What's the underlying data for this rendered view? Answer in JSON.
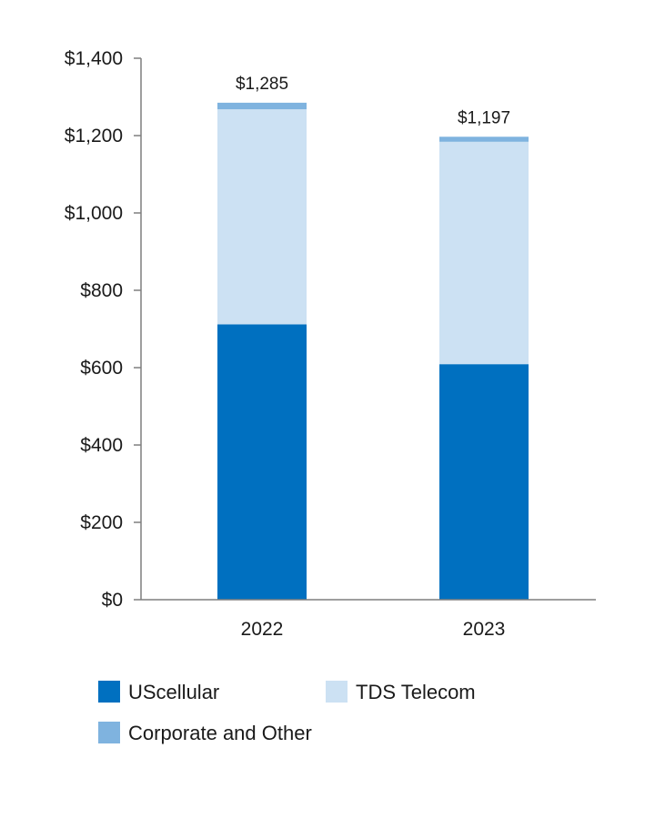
{
  "chart_data": {
    "type": "bar",
    "stacked": true,
    "title": "",
    "xlabel": "",
    "ylabel": "",
    "categories": [
      "2022",
      "2023"
    ],
    "series": [
      {
        "name": "UScellular",
        "values": [
          712,
          609
        ],
        "color": "#0070c0"
      },
      {
        "name": "TDS Telecom",
        "values": [
          556,
          575
        ],
        "color": "#cce1f3"
      },
      {
        "name": "Corporate and Other",
        "values": [
          17,
          13
        ],
        "color": "#7fb3df"
      }
    ],
    "totals": [
      1285,
      1197
    ],
    "total_labels": [
      "$1,285",
      "$1,197"
    ],
    "ylim": [
      0,
      1400
    ],
    "yticks": [
      0,
      200,
      400,
      600,
      800,
      1000,
      1200,
      1400
    ],
    "ytick_labels": [
      "$0",
      "$200",
      "$400",
      "$600",
      "$800",
      "$1,000",
      "$1,200",
      "$1,400"
    ],
    "grid": false,
    "legend_position": "bottom",
    "axis_color": "#7f7f7f"
  }
}
